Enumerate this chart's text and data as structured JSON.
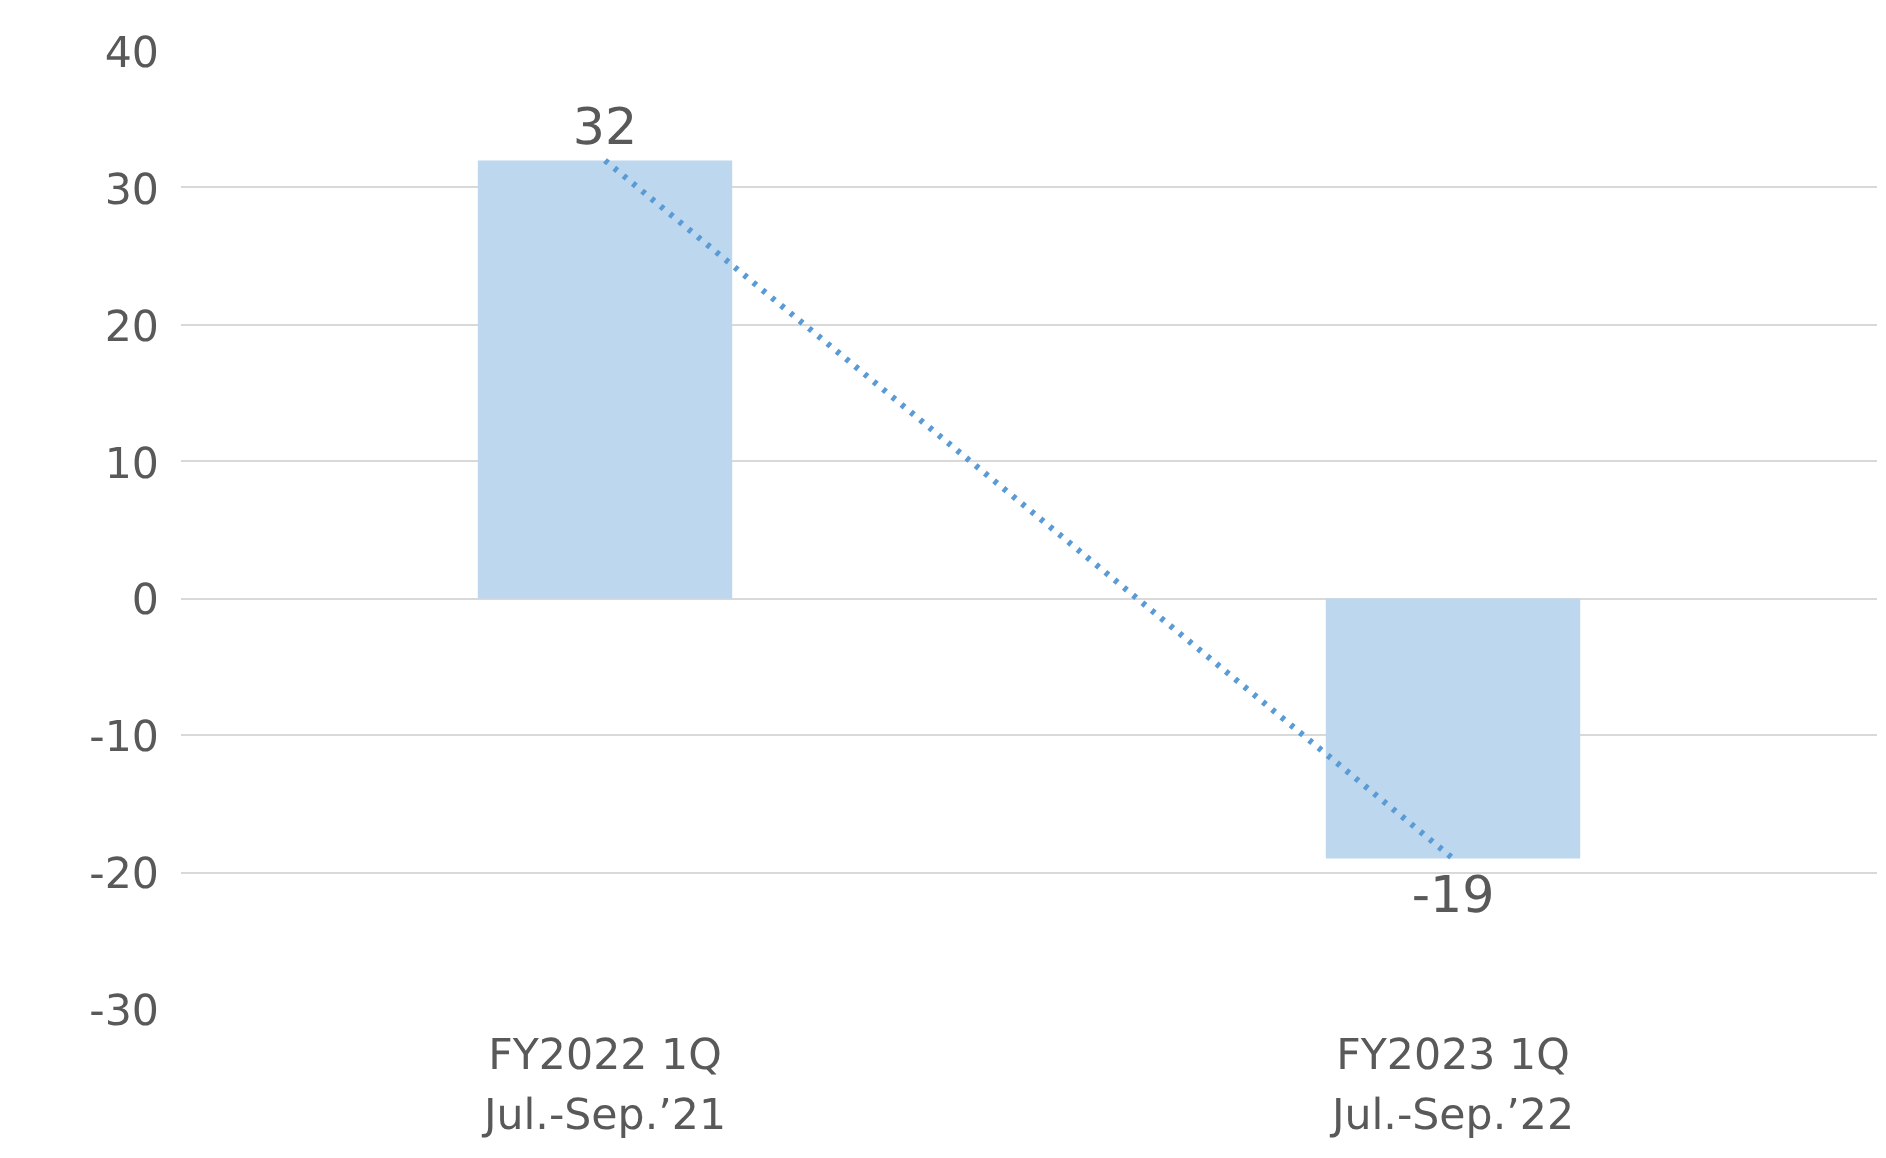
{
  "chart_data": {
    "type": "bar",
    "categories": [
      "FY2022 1Q\nJul.-Sep.’21",
      "FY2023 1Q\nJul.-Sep.’22"
    ],
    "series": [
      {
        "color": "#bdd7ee",
        "values": [
          32,
          -19
        ],
        "value_labels": [
          "32",
          "-19"
        ]
      },
      {
        "type": "line",
        "color": "#5b9bd5",
        "values": [
          32,
          -19
        ],
        "x": [
          "FY2022 1Q\nJul.-Sep.’21",
          "FY2023 1Q\nJul.-Sep.’22"
        ],
        "line_style": "dotted",
        "marker": "none"
      }
    ],
    "ylim": [
      -30,
      40
    ],
    "yticks": [
      -30,
      -20,
      -10,
      0,
      10,
      20,
      30,
      40
    ],
    "grid": "y"
  }
}
